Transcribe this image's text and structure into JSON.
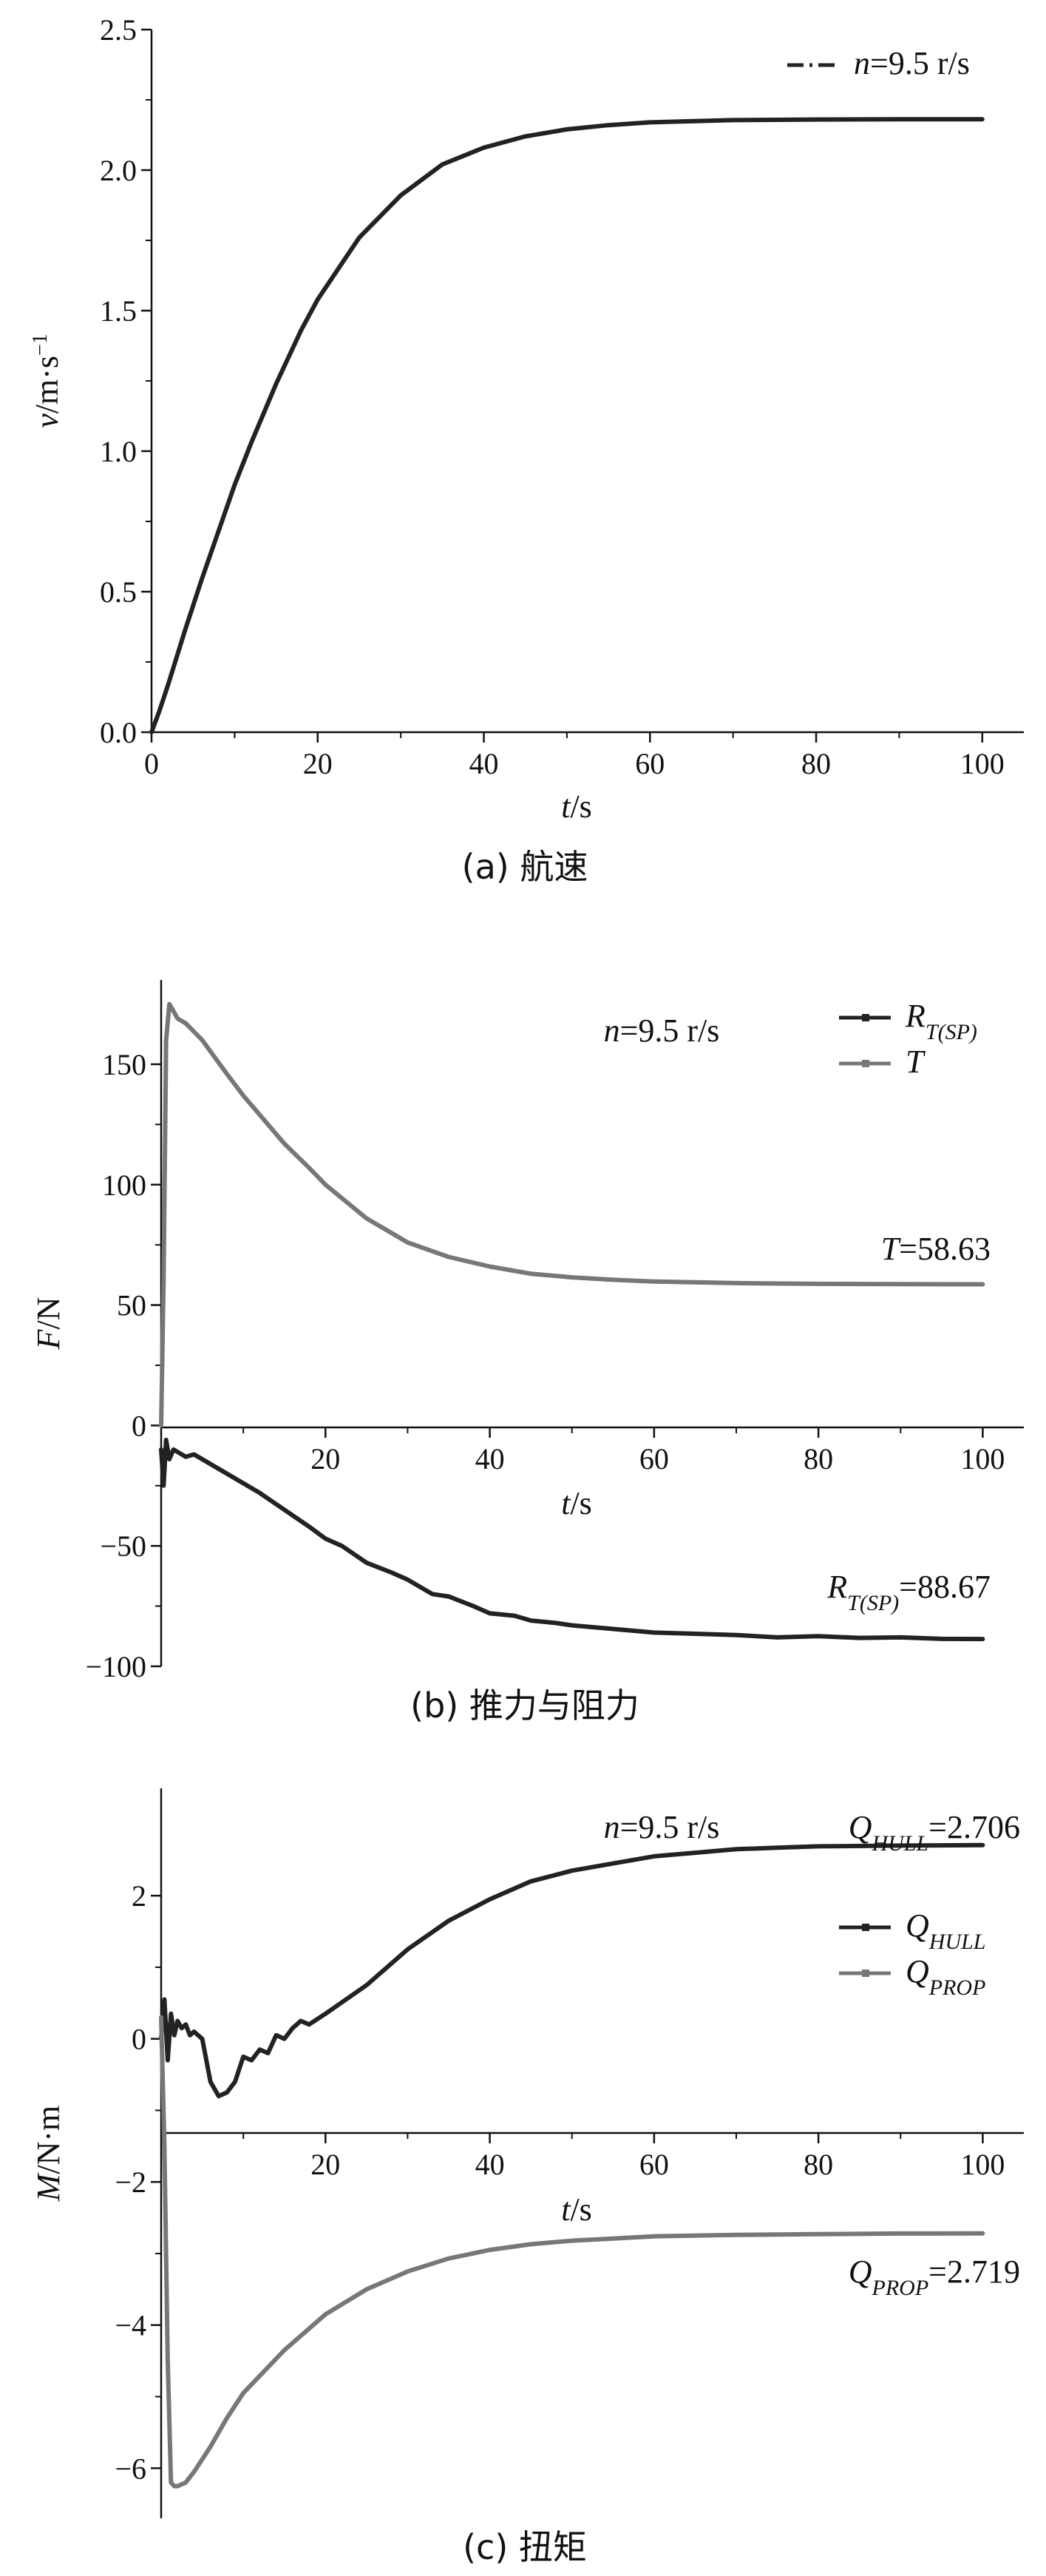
{
  "chart_data": [
    {
      "type": "line",
      "panel_caption": "(a) 航速",
      "xlabel_var": "t",
      "xlabel_unit": "/s",
      "ylabel_var": "v",
      "ylabel_unit": "/m·s",
      "ylabel_sup": "−1",
      "xlim": [
        0,
        105
      ],
      "ylim": [
        0,
        2.5
      ],
      "xticks": [
        0,
        20,
        40,
        60,
        80,
        100
      ],
      "yticks": [
        0.0,
        0.5,
        1.0,
        1.5,
        2.0,
        2.5
      ],
      "ytick_labels": [
        "0.0",
        "0.5",
        "1.0",
        "1.5",
        "2.0",
        "2.5"
      ],
      "legend": {
        "position": "top-right",
        "entries": [
          {
            "label_var": "n",
            "label_rest": "=9.5 r/s"
          }
        ]
      },
      "series": [
        {
          "color": "#222222",
          "x": [
            0,
            1,
            2,
            4,
            6,
            8,
            10,
            12,
            15,
            18,
            20,
            25,
            30,
            35,
            40,
            45,
            50,
            55,
            60,
            70,
            80,
            90,
            100
          ],
          "y": [
            0.0,
            0.08,
            0.17,
            0.36,
            0.54,
            0.71,
            0.88,
            1.03,
            1.24,
            1.43,
            1.54,
            1.76,
            1.91,
            2.02,
            2.08,
            2.12,
            2.145,
            2.16,
            2.17,
            2.178,
            2.18,
            2.181,
            2.181
          ]
        }
      ]
    },
    {
      "type": "line",
      "panel_caption": "(b) 推力与阻力",
      "xlabel_var": "t",
      "xlabel_unit": "/s",
      "ylabel_var": "F",
      "ylabel_unit": "/N",
      "xlim": [
        0,
        105
      ],
      "ylim": [
        -100,
        185
      ],
      "xticks": [
        20,
        40,
        60,
        80,
        100
      ],
      "yticks": [
        -100,
        -50,
        0,
        50,
        100,
        150
      ],
      "ytick_labels": [
        "−100",
        "−50",
        "0",
        "50",
        "100",
        "150"
      ],
      "annotation_top": {
        "label_var": "n",
        "label_rest": "=9.5 r/s"
      },
      "annotations": [
        {
          "label_var": "T",
          "label_rest": "=58.63"
        },
        {
          "label_var": "R",
          "label_sub": "T(SP)",
          "label_rest": "=88.67"
        }
      ],
      "legend": {
        "position": "top-right",
        "entries": [
          {
            "label_var": "R",
            "label_sub": "T(SP)"
          },
          {
            "label_var": "T"
          }
        ]
      },
      "series": [
        {
          "color": "#222222",
          "x": [
            0,
            0.3,
            0.6,
            1,
            1.5,
            2,
            3,
            4,
            6,
            8,
            10,
            12,
            15,
            18,
            20,
            22,
            25,
            28,
            30,
            33,
            35,
            38,
            40,
            43,
            45,
            48,
            50,
            55,
            60,
            65,
            70,
            75,
            80,
            85,
            90,
            95,
            100
          ],
          "y": [
            -10,
            -25,
            -6,
            -14,
            -10,
            -11,
            -13,
            -12,
            -16,
            -20,
            -24,
            -28,
            -35,
            -42,
            -47,
            -50,
            -57,
            -61,
            -64,
            -70,
            -71,
            -75,
            -78,
            -79,
            -81,
            -82,
            -83,
            -84.5,
            -86,
            -86.5,
            -87,
            -88,
            -87.5,
            -88.2,
            -88,
            -88.6,
            -88.67
          ]
        },
        {
          "color": "#777777",
          "x": [
            0,
            0.3,
            0.6,
            1,
            1.5,
            2,
            3,
            5,
            8,
            10,
            12,
            15,
            18,
            20,
            25,
            30,
            35,
            40,
            45,
            50,
            55,
            60,
            70,
            80,
            90,
            100
          ],
          "y": [
            0,
            60,
            160,
            175,
            172,
            169,
            167,
            160,
            146,
            137,
            129,
            117,
            107,
            100,
            86,
            76,
            70,
            66,
            63,
            61.5,
            60.5,
            59.8,
            59.1,
            58.8,
            58.7,
            58.63
          ]
        }
      ]
    },
    {
      "type": "line",
      "panel_caption": "(c) 扭矩",
      "xlabel_var": "t",
      "xlabel_unit": "/s",
      "ylabel_var": "M",
      "ylabel_unit": "/N·m",
      "xlim": [
        0,
        105
      ],
      "ylim": [
        -6.7,
        3.5
      ],
      "xticks": [
        20,
        40,
        60,
        80,
        100
      ],
      "yticks": [
        -6,
        -4,
        -2,
        0,
        2
      ],
      "ytick_labels": [
        "−6",
        "−4",
        "−2",
        "0",
        "2"
      ],
      "annotation_top": {
        "label_var": "n",
        "label_rest": "=9.5 r/s"
      },
      "annotations": [
        {
          "label_var": "Q",
          "label_sub": "HULL",
          "label_rest": "=2.706"
        },
        {
          "label_var": "Q",
          "label_sub": "PROP",
          "label_rest": "=2.719"
        }
      ],
      "legend": {
        "position": "top-right",
        "entries": [
          {
            "label_var": "Q",
            "label_sub": "HULL"
          },
          {
            "label_var": "Q",
            "label_sub": "PROP"
          }
        ]
      },
      "series": [
        {
          "color": "#222222",
          "x": [
            0,
            0.4,
            0.8,
            1.2,
            1.6,
            2,
            2.5,
            3,
            3.5,
            4,
            5,
            6,
            7,
            8,
            9,
            10,
            11,
            12,
            13,
            14,
            15,
            16,
            17,
            18,
            20,
            25,
            30,
            35,
            40,
            45,
            50,
            55,
            60,
            65,
            70,
            75,
            80,
            90,
            100
          ],
          "y": [
            0,
            0.55,
            -0.3,
            0.35,
            0.05,
            0.25,
            0.15,
            0.2,
            0.05,
            0.1,
            0.0,
            -0.6,
            -0.8,
            -0.75,
            -0.6,
            -0.25,
            -0.3,
            -0.15,
            -0.2,
            0.05,
            0.0,
            0.15,
            0.25,
            0.2,
            0.35,
            0.75,
            1.25,
            1.65,
            1.95,
            2.2,
            2.35,
            2.45,
            2.55,
            2.6,
            2.65,
            2.67,
            2.69,
            2.7,
            2.706
          ]
        },
        {
          "color": "#777777",
          "x": [
            0,
            0.4,
            0.8,
            1.2,
            1.6,
            2,
            3,
            4,
            6,
            8,
            10,
            15,
            20,
            25,
            30,
            35,
            40,
            45,
            50,
            55,
            60,
            70,
            80,
            90,
            100
          ],
          "y": [
            0.3,
            -1.5,
            -4.5,
            -6.2,
            -6.25,
            -6.25,
            -6.2,
            -6.05,
            -5.7,
            -5.3,
            -4.95,
            -4.35,
            -3.85,
            -3.5,
            -3.25,
            -3.07,
            -2.95,
            -2.87,
            -2.82,
            -2.79,
            -2.76,
            -2.74,
            -2.73,
            -2.72,
            -2.719
          ]
        }
      ]
    }
  ]
}
